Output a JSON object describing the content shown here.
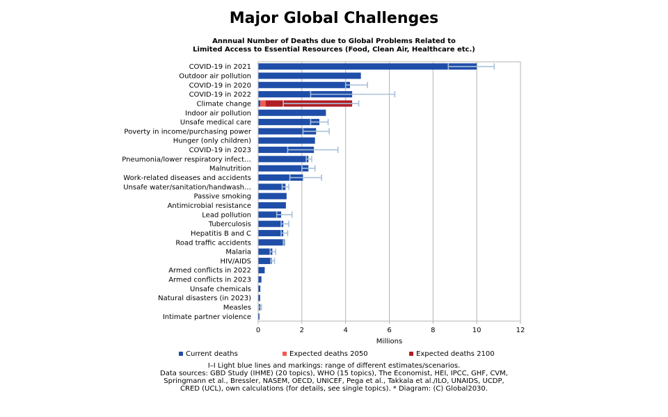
{
  "chart_data": {
    "type": "bar",
    "orientation": "horizontal",
    "title": "Major Global Challenges",
    "subtitle": [
      "Annnual Number of Deaths due to Global Problems Related to",
      "Limited Access to Essential Resources (Food, Clean Air, Healthcare etc.)"
    ],
    "xlabel": "Millions",
    "xlim": [
      0,
      12
    ],
    "xticks": [
      "0",
      "2",
      "4",
      "6",
      "8",
      "10",
      "12"
    ],
    "grid": true,
    "legend_position": "bottom",
    "categories": [
      "COVID-19 in 2021",
      "Outdoor air pollution",
      "COVID-19 in 2020",
      "COVID-19 in 2022",
      "Climate change",
      "Indoor air pollution",
      "Unsafe medical care",
      "Poverty in income/purchasing power",
      "Hunger (only children)",
      "COVID-19 in 2023",
      "Pneumonia/lower respiratory infect…",
      "Malnutrition",
      "Work-related diseases and accidents",
      "Unsafe water/sanitation/handwash…",
      "Passive smoking",
      "Antimicrobial resistance",
      "Lead pollution",
      "Tuberculosis",
      "Hepatitis B and C",
      "Road traffic accidents",
      "Malaria",
      "HIV/AIDS",
      "Armed conflicts in 2022",
      "Armed conflicts in 2023",
      "Unsafe chemicals",
      "Natural disasters (in 2023)",
      "Measles",
      "Intimate partner violence"
    ],
    "series": [
      {
        "name": "Current deaths",
        "color": "#1f4ea8",
        "values": [
          10,
          4.7,
          4.2,
          4.3,
          0.1,
          3.1,
          2.8,
          2.65,
          2.6,
          2.55,
          2.3,
          2.3,
          2.05,
          1.25,
          1.3,
          1.27,
          1.05,
          1.15,
          1.15,
          1.2,
          0.65,
          0.63,
          0.3,
          0.15,
          0.1,
          0.09,
          0.1,
          0.06
        ],
        "ranges": [
          [
            8.7,
            10.8
          ],
          null,
          [
            4.0,
            5.0
          ],
          [
            2.4,
            6.25
          ],
          null,
          null,
          [
            2.4,
            3.2
          ],
          [
            2.05,
            3.25
          ],
          null,
          [
            1.35,
            3.65
          ],
          [
            2.2,
            2.45
          ],
          [
            2.0,
            2.6
          ],
          [
            1.45,
            2.9
          ],
          [
            1.1,
            1.4
          ],
          null,
          null,
          [
            0.85,
            1.55
          ],
          [
            1.05,
            1.4
          ],
          [
            1.05,
            1.35
          ],
          [
            1.15,
            1.22
          ],
          [
            0.55,
            0.8
          ],
          [
            0.58,
            0.75
          ],
          null,
          null,
          null,
          null,
          [
            0.02,
            0.15
          ],
          null
        ]
      },
      {
        "name": "Expected deaths 2050",
        "color": "#f05a50",
        "values": [
          0,
          0,
          0,
          0,
          0.25,
          0,
          0,
          0,
          0,
          0,
          0,
          0,
          0,
          0,
          0,
          0,
          0,
          0,
          0,
          0,
          0,
          0,
          0,
          0,
          0,
          0,
          0,
          0
        ]
      },
      {
        "name": "Expected deaths 2100",
        "color": "#b01e24",
        "values": [
          0,
          0,
          0,
          0,
          3.95,
          0,
          0,
          0,
          0,
          0,
          0,
          0,
          0,
          0,
          0,
          0,
          0,
          0,
          0,
          0,
          0,
          0,
          0,
          0,
          0,
          0,
          0,
          0
        ],
        "ranges": [
          null,
          null,
          null,
          null,
          [
            1.15,
            4.6
          ],
          null,
          null,
          null,
          null,
          null,
          null,
          null,
          null,
          null,
          null,
          null,
          null,
          null,
          null,
          null,
          null,
          null,
          null,
          null,
          null,
          null,
          null,
          null
        ]
      }
    ],
    "error_bar_color": "#a8c0dc"
  },
  "notes": [
    "I–I  Light blue lines and markings: range of different estimates/scenarios.",
    "Data sources: GBD Study (IHME) (20 topics), WHO (15 topics), The Economist, HEI, IPCC, GHF, CVM,",
    "Springmann et al., Bressler, NASEM, OECD, UNICEF, Pega et al., Takkala et al./ILO, UNAIDS, UCDP,",
    "CRED (UCL), own calculations (for details, see single topics). * Diagram: (C) Global2030."
  ]
}
